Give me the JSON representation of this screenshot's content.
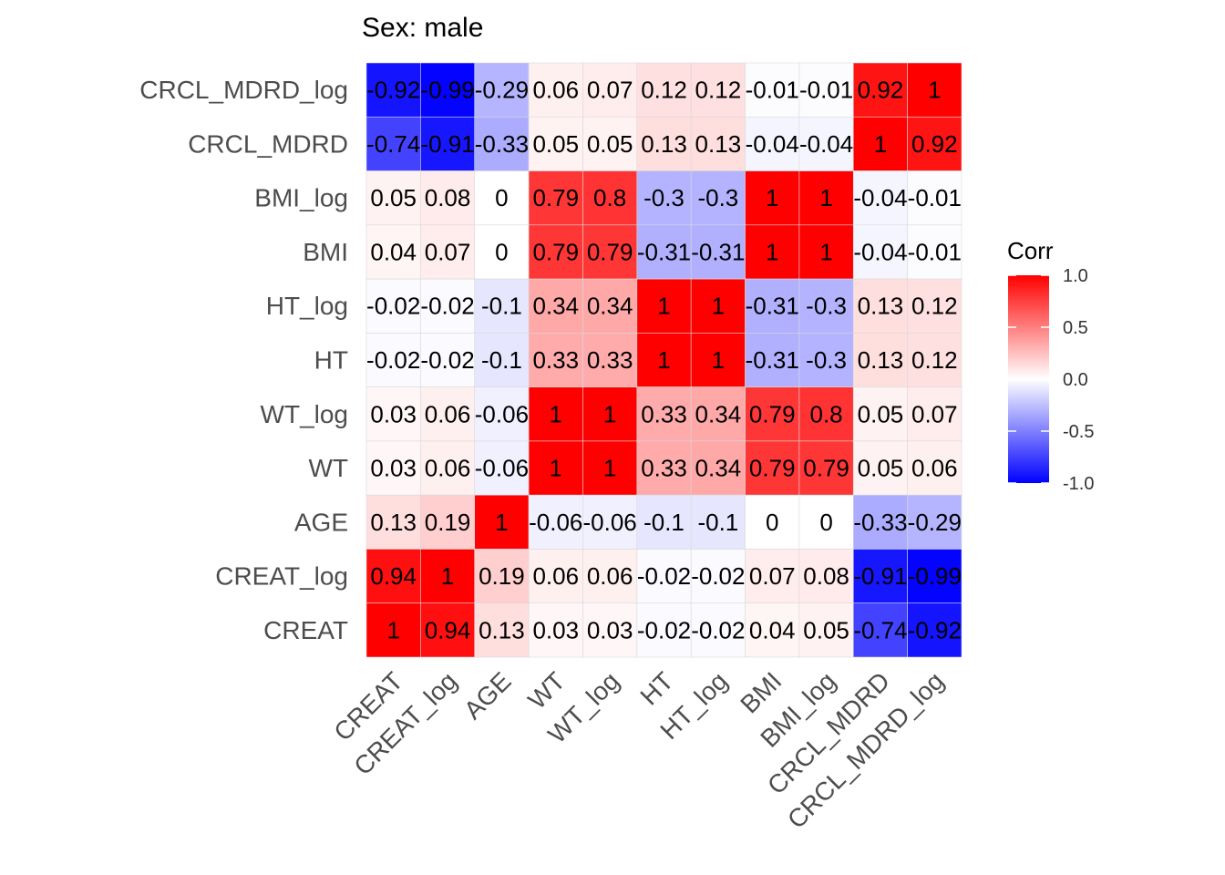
{
  "chart_data": {
    "type": "heatmap",
    "title": "Sex: male",
    "x_categories": [
      "CREAT",
      "CREAT_log",
      "AGE",
      "WT",
      "WT_log",
      "HT",
      "HT_log",
      "BMI",
      "BMI_log",
      "CRCL_MDRD",
      "CRCL_MDRD_log"
    ],
    "y_categories_top_to_bottom": [
      "CRCL_MDRD_log",
      "CRCL_MDRD",
      "BMI_log",
      "BMI",
      "HT_log",
      "HT",
      "WT_log",
      "WT",
      "AGE",
      "CREAT_log",
      "CREAT"
    ],
    "values": [
      [
        -0.92,
        -0.99,
        -0.29,
        0.06,
        0.07,
        0.12,
        0.12,
        -0.01,
        -0.01,
        0.92,
        1
      ],
      [
        -0.74,
        -0.91,
        -0.33,
        0.05,
        0.05,
        0.13,
        0.13,
        -0.04,
        -0.04,
        1,
        0.92
      ],
      [
        0.05,
        0.08,
        0,
        0.79,
        0.8,
        -0.3,
        -0.3,
        1,
        1,
        -0.04,
        -0.01
      ],
      [
        0.04,
        0.07,
        0,
        0.79,
        0.79,
        -0.31,
        -0.31,
        1,
        1,
        -0.04,
        -0.01
      ],
      [
        -0.02,
        -0.02,
        -0.1,
        0.34,
        0.34,
        1,
        1,
        -0.31,
        -0.3,
        0.13,
        0.12
      ],
      [
        -0.02,
        -0.02,
        -0.1,
        0.33,
        0.33,
        1,
        1,
        -0.31,
        -0.3,
        0.13,
        0.12
      ],
      [
        0.03,
        0.06,
        -0.06,
        1,
        1,
        0.33,
        0.34,
        0.79,
        0.8,
        0.05,
        0.07
      ],
      [
        0.03,
        0.06,
        -0.06,
        1,
        1,
        0.33,
        0.34,
        0.79,
        0.79,
        0.05,
        0.06
      ],
      [
        0.13,
        0.19,
        1,
        -0.06,
        -0.06,
        -0.1,
        -0.1,
        0,
        0,
        -0.33,
        -0.29
      ],
      [
        0.94,
        1,
        0.19,
        0.06,
        0.06,
        -0.02,
        -0.02,
        0.07,
        0.08,
        -0.91,
        -0.99
      ],
      [
        1,
        0.94,
        0.13,
        0.03,
        0.03,
        -0.02,
        -0.02,
        0.04,
        0.05,
        -0.74,
        -0.92
      ]
    ],
    "legend": {
      "title": "Corr",
      "ticks": [
        "1.0",
        "0.5",
        "0.0",
        "-0.5",
        "-1.0"
      ],
      "range": [
        -1,
        1
      ],
      "placement": "right"
    },
    "colors": {
      "low": "#0000FF",
      "mid": "#FFFFFF",
      "high": "#FF0000"
    }
  }
}
